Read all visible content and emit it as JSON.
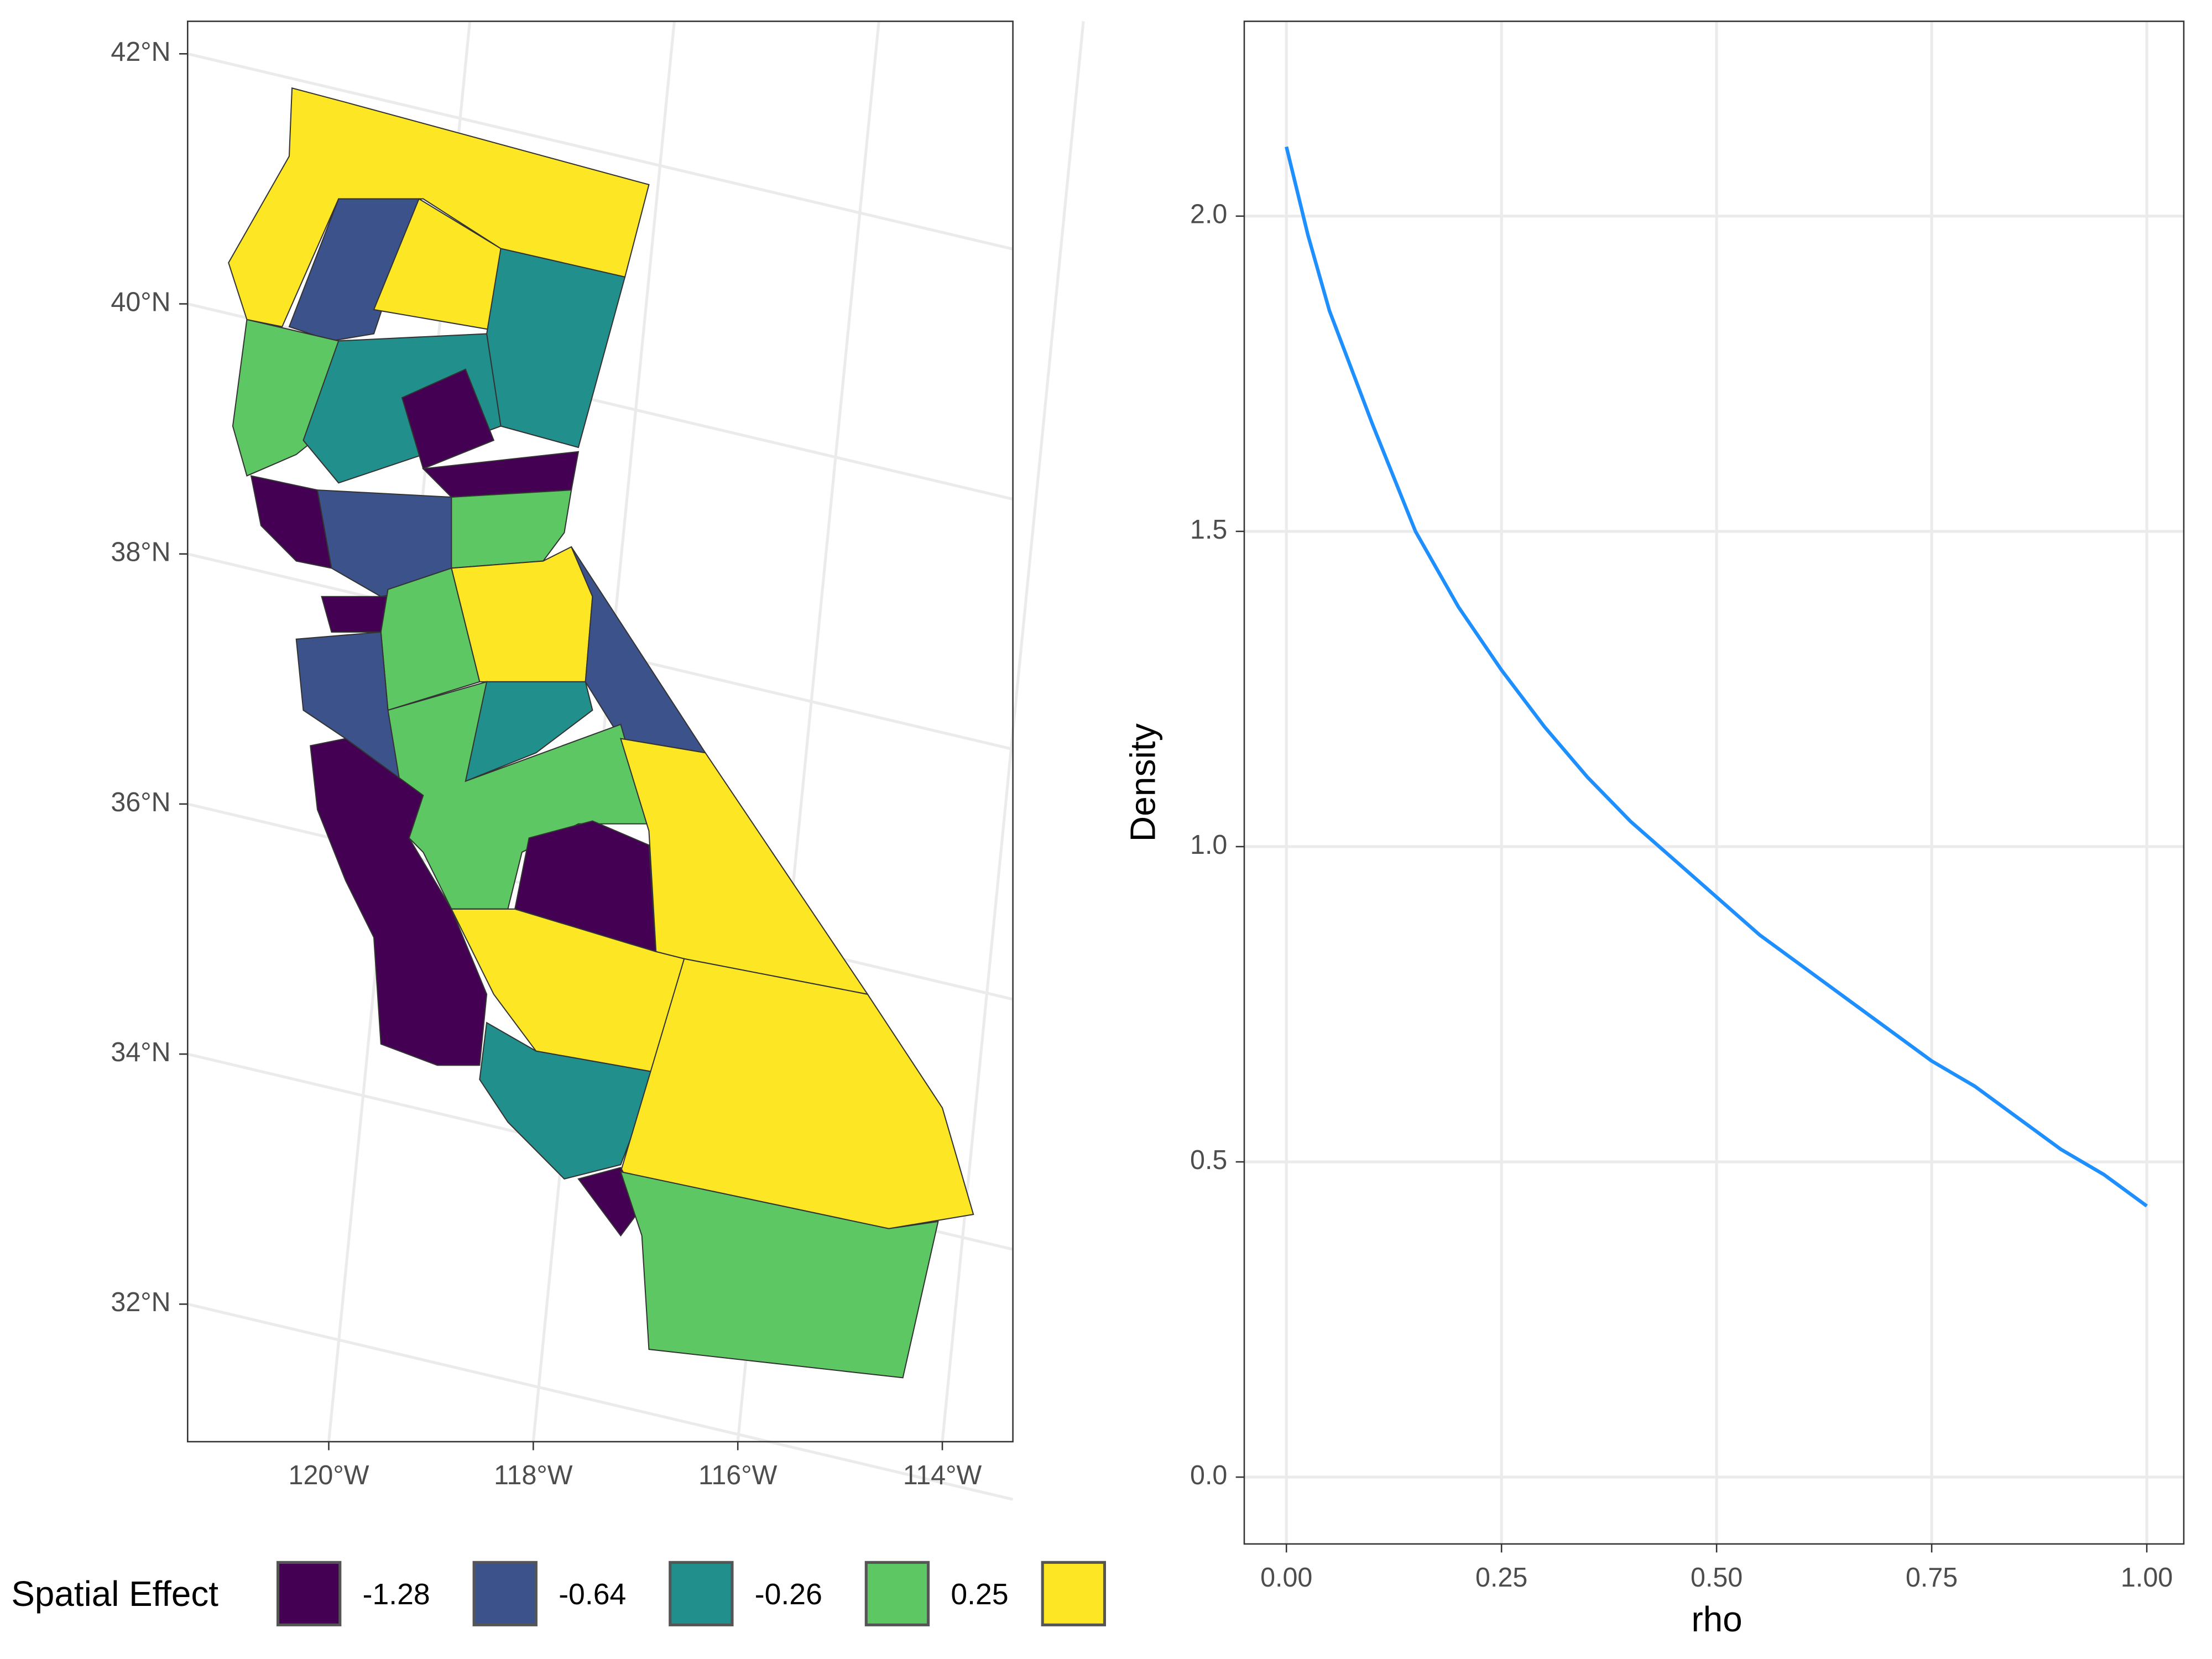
{
  "chart_data": [
    {
      "type": "map",
      "xlim": [
        -121.38,
        -113.31
      ],
      "ylim": [
        30.9,
        42.26
      ],
      "xticks": [
        {
          "value": -120,
          "label": "120°W"
        },
        {
          "value": -118,
          "label": "118°W"
        },
        {
          "value": -116,
          "label": "116°W"
        },
        {
          "value": -114,
          "label": "114°W"
        }
      ],
      "yticks": [
        {
          "value": 32,
          "label": "32°N"
        },
        {
          "value": 34,
          "label": "34°N"
        },
        {
          "value": 36,
          "label": "36°N"
        },
        {
          "value": 38,
          "label": "38°N"
        },
        {
          "value": 40,
          "label": "40°N"
        },
        {
          "value": 42,
          "label": "42°N"
        }
      ],
      "grid": true,
      "legend": {
        "title": "Spatial Effect",
        "entries": [
          {
            "label": -1.28,
            "color": "#440154"
          },
          {
            "label": -0.64,
            "color": "#3B528B"
          },
          {
            "label": -0.26,
            "color": "#21908C"
          },
          {
            "label": 0.25,
            "color": "#5DC863"
          },
          {
            "label": null,
            "color": "#FDE725"
          }
        ]
      }
    },
    {
      "type": "line",
      "xlabel": "rho",
      "ylabel": "Density",
      "color": "#1E8FFF",
      "grid": true,
      "x": [
        0,
        0.025,
        0.05,
        0.1,
        0.15,
        0.2,
        0.25,
        0.3,
        0.35,
        0.4,
        0.45,
        0.5,
        0.55,
        0.6,
        0.65,
        0.7,
        0.75,
        0.8,
        0.85,
        0.9,
        0.95,
        1.0
      ],
      "values": [
        2.11,
        1.97,
        1.85,
        1.67,
        1.5,
        1.38,
        1.28,
        1.19,
        1.11,
        1.04,
        0.98,
        0.92,
        0.86,
        0.81,
        0.76,
        0.71,
        0.66,
        0.62,
        0.57,
        0.52,
        0.48,
        0.43
      ],
      "xlim": [
        -0.049,
        1.043
      ],
      "ylim": [
        -0.106,
        2.309
      ],
      "xticks": [
        {
          "value": 0,
          "label": "0.00"
        },
        0.25,
        {
          "value": 0.5,
          "label": "0.50"
        },
        0.75,
        {
          "value": 1,
          "label": "1.00"
        }
      ],
      "yticks": [
        {
          "value": 0,
          "label": "0.0"
        },
        0.5,
        {
          "value": 1,
          "label": "1.0"
        },
        1.5,
        {
          "value": 2,
          "label": "2.0"
        }
      ]
    }
  ]
}
